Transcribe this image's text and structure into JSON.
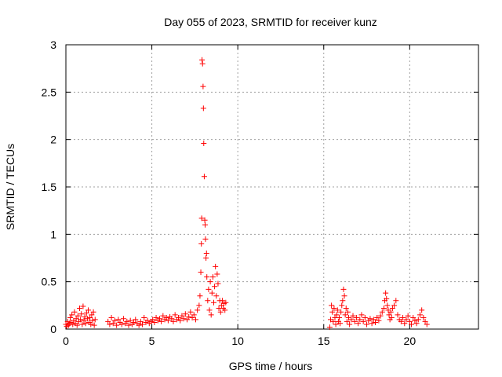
{
  "chart_data": {
    "type": "scatter",
    "title": "Day 055 of 2023, SRMTID for receiver kunz",
    "xlabel": "GPS time / hours",
    "ylabel": "SRMTID / TECUs",
    "xlim": [
      0,
      24
    ],
    "ylim": [
      0,
      3
    ],
    "xticks": [
      0,
      5,
      10,
      15,
      20
    ],
    "xtick_labels": [
      "0",
      "5",
      "10",
      "15",
      "20"
    ],
    "yticks": [
      0,
      0.5,
      1,
      1.5,
      2,
      2.5,
      3
    ],
    "ytick_labels": [
      "0",
      "0.5",
      "1",
      "1.5",
      "2",
      "2.5",
      "3"
    ],
    "grid": true,
    "marker": "plus",
    "color": "#ff0000",
    "series": [
      {
        "name": "SRMTID",
        "x": [
          0.0,
          0.05,
          0.1,
          0.15,
          0.2,
          0.25,
          0.3,
          0.35,
          0.4,
          0.45,
          0.5,
          0.55,
          0.6,
          0.65,
          0.7,
          0.75,
          0.8,
          0.85,
          0.9,
          0.95,
          1.0,
          1.05,
          1.1,
          1.15,
          1.2,
          1.25,
          1.3,
          1.35,
          1.4,
          1.45,
          1.5,
          1.55,
          1.6,
          1.65,
          1.7,
          2.45,
          2.55,
          2.65,
          2.75,
          2.85,
          2.95,
          3.05,
          3.15,
          3.25,
          3.35,
          3.45,
          3.55,
          3.65,
          3.75,
          3.85,
          3.95,
          4.05,
          4.15,
          4.25,
          4.35,
          4.45,
          4.55,
          4.65,
          4.75,
          4.85,
          4.95,
          5.05,
          5.15,
          5.25,
          5.35,
          5.45,
          5.55,
          5.65,
          5.75,
          5.85,
          5.95,
          6.05,
          6.15,
          6.25,
          6.35,
          6.45,
          6.55,
          6.65,
          6.75,
          6.85,
          6.95,
          7.05,
          7.15,
          7.25,
          7.35,
          7.45,
          7.55,
          7.65,
          7.75,
          7.8,
          7.85,
          7.88,
          7.9,
          7.92,
          7.95,
          7.98,
          8.0,
          8.02,
          8.05,
          8.08,
          8.1,
          8.12,
          8.15,
          8.18,
          8.2,
          8.25,
          8.3,
          8.35,
          8.4,
          8.45,
          8.5,
          8.55,
          8.6,
          8.65,
          8.7,
          8.75,
          8.8,
          8.85,
          8.9,
          8.95,
          9.0,
          9.05,
          9.1,
          9.15,
          9.2,
          9.25,
          9.3,
          15.35,
          15.4,
          15.45,
          15.5,
          15.55,
          15.6,
          15.65,
          15.7,
          15.75,
          15.8,
          15.85,
          15.9,
          15.95,
          16.0,
          16.05,
          16.1,
          16.15,
          16.2,
          16.25,
          16.3,
          16.35,
          16.4,
          16.45,
          16.5,
          16.6,
          16.7,
          16.8,
          16.9,
          17.0,
          17.1,
          17.2,
          17.3,
          17.4,
          17.5,
          17.6,
          17.7,
          17.8,
          17.9,
          18.0,
          18.1,
          18.2,
          18.3,
          18.4,
          18.5,
          18.55,
          18.6,
          18.65,
          18.7,
          18.75,
          18.8,
          18.85,
          18.9,
          18.95,
          19.0,
          19.1,
          19.2,
          19.3,
          19.4,
          19.5,
          19.6,
          19.7,
          19.8,
          19.9,
          20.0,
          20.1,
          20.2,
          20.3,
          20.4,
          20.5,
          20.6,
          20.7,
          20.8,
          20.9,
          21.0
        ],
        "y": [
          0.05,
          0.03,
          0.08,
          0.04,
          0.06,
          0.12,
          0.07,
          0.15,
          0.05,
          0.09,
          0.18,
          0.06,
          0.11,
          0.04,
          0.14,
          0.08,
          0.22,
          0.1,
          0.16,
          0.05,
          0.24,
          0.09,
          0.13,
          0.06,
          0.17,
          0.11,
          0.2,
          0.07,
          0.12,
          0.05,
          0.15,
          0.09,
          0.18,
          0.04,
          0.1,
          0.08,
          0.05,
          0.12,
          0.06,
          0.09,
          0.04,
          0.1,
          0.07,
          0.05,
          0.11,
          0.06,
          0.08,
          0.04,
          0.09,
          0.05,
          0.07,
          0.1,
          0.06,
          0.04,
          0.08,
          0.05,
          0.12,
          0.07,
          0.09,
          0.06,
          0.08,
          0.1,
          0.07,
          0.12,
          0.09,
          0.11,
          0.08,
          0.14,
          0.1,
          0.12,
          0.09,
          0.13,
          0.11,
          0.08,
          0.15,
          0.1,
          0.12,
          0.09,
          0.14,
          0.11,
          0.16,
          0.1,
          0.13,
          0.18,
          0.12,
          0.15,
          0.1,
          0.2,
          0.25,
          0.35,
          0.6,
          0.9,
          1.17,
          2.84,
          2.8,
          2.56,
          2.33,
          1.96,
          1.61,
          1.15,
          1.1,
          0.95,
          0.75,
          0.8,
          0.55,
          0.3,
          0.42,
          0.2,
          0.5,
          0.15,
          0.38,
          0.55,
          0.28,
          0.45,
          0.66,
          0.35,
          0.58,
          0.48,
          0.22,
          0.3,
          0.18,
          0.25,
          0.3,
          0.22,
          0.27,
          0.2,
          0.28,
          0.02,
          0.1,
          0.25,
          0.18,
          0.08,
          0.22,
          0.12,
          0.05,
          0.15,
          0.2,
          0.08,
          0.12,
          0.06,
          0.18,
          0.25,
          0.3,
          0.42,
          0.35,
          0.15,
          0.22,
          0.08,
          0.18,
          0.12,
          0.05,
          0.1,
          0.14,
          0.08,
          0.12,
          0.06,
          0.1,
          0.15,
          0.08,
          0.12,
          0.05,
          0.09,
          0.11,
          0.06,
          0.1,
          0.07,
          0.12,
          0.09,
          0.14,
          0.18,
          0.22,
          0.3,
          0.38,
          0.32,
          0.25,
          0.2,
          0.15,
          0.1,
          0.18,
          0.12,
          0.22,
          0.25,
          0.3,
          0.15,
          0.1,
          0.08,
          0.12,
          0.06,
          0.1,
          0.14,
          0.08,
          0.05,
          0.12,
          0.09,
          0.06,
          0.1,
          0.15,
          0.2,
          0.12,
          0.08,
          0.05
        ]
      }
    ]
  }
}
